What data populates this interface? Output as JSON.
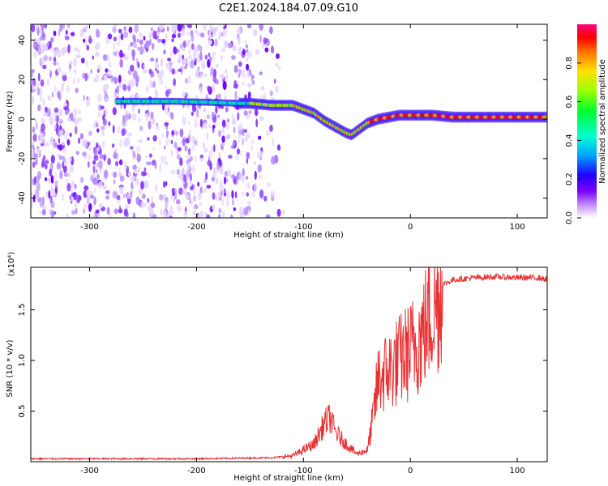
{
  "title": "C2E1.2024.184.07.09.G10",
  "chart_data": [
    {
      "type": "heatmap",
      "xlabel": "Height of straight line (km)",
      "ylabel": "Frequency (Hz)",
      "xlim": [
        -355,
        128
      ],
      "ylim": [
        -50,
        48
      ],
      "xticks": [
        -300,
        -200,
        -100,
        0,
        100
      ],
      "yticks": [
        -40,
        -20,
        0,
        20,
        40
      ],
      "colorbar": {
        "label": "Normalized spectral amplitude",
        "range": [
          0,
          1
        ],
        "ticks": [
          0.0,
          0.2,
          0.4,
          0.6,
          0.8
        ]
      },
      "ridge": {
        "x": [
          -275,
          -220,
          -160,
          -150,
          -130,
          -110,
          -100,
          -90,
          -80,
          -70,
          -60,
          -55,
          -50,
          -40,
          -30,
          -20,
          -10,
          0,
          20,
          40,
          60,
          80,
          100,
          128
        ],
        "y": [
          9,
          9,
          8,
          8,
          7,
          7,
          5,
          3,
          -1,
          -4,
          -7,
          -8,
          -6,
          -2,
          0,
          1,
          2,
          2,
          2,
          1,
          1,
          1,
          1,
          1
        ]
      }
    },
    {
      "type": "line",
      "xlabel": "Height of straight line (km)",
      "ylabel": "SNR (10 * v/v)",
      "multiplier": "(x10⁴)",
      "xlim": [
        -355,
        128
      ],
      "ylim": [
        0,
        1.92
      ],
      "xticks": [
        -300,
        -200,
        -100,
        0,
        100
      ],
      "yticks": [
        0.5,
        1.0,
        1.5
      ],
      "color": "#e83232",
      "envelope": {
        "x": [
          -355,
          -200,
          -130,
          -110,
          -100,
          -90,
          -80,
          -75,
          -70,
          -60,
          -50,
          -40,
          -35,
          -30,
          -20,
          -10,
          0,
          10,
          20,
          30,
          40,
          60,
          80,
          100,
          120,
          128
        ],
        "y": [
          0.03,
          0.03,
          0.04,
          0.06,
          0.12,
          0.18,
          0.4,
          0.45,
          0.3,
          0.18,
          0.08,
          0.12,
          0.45,
          0.85,
          0.95,
          1.05,
          1.15,
          1.3,
          1.55,
          1.75,
          1.8,
          1.82,
          1.83,
          1.82,
          1.82,
          1.8
        ]
      }
    }
  ]
}
